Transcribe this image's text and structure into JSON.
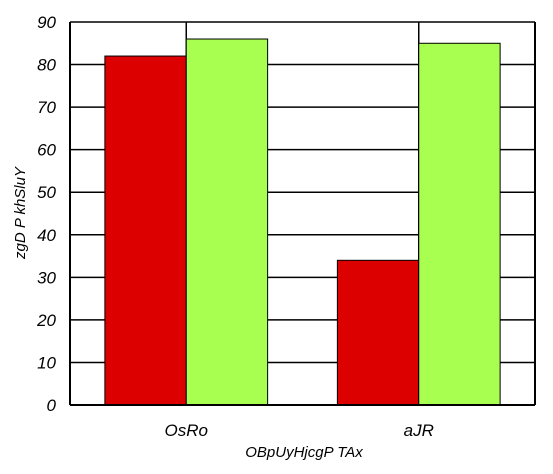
{
  "chart_data": {
    "type": "bar",
    "categories": [
      "OsRo",
      "aJR"
    ],
    "series": [
      {
        "values": [
          82,
          34
        ],
        "color": "#dd0000"
      },
      {
        "values": [
          86,
          85
        ],
        "color": "#a8ff50"
      }
    ],
    "xlabel": "OBpUyHjcgP TAx",
    "ylabel": "zgD P khSluY",
    "ylim": [
      0,
      90
    ],
    "yticks": [
      0,
      10,
      20,
      30,
      40,
      50,
      60,
      70,
      80,
      90
    ],
    "grid": true
  }
}
